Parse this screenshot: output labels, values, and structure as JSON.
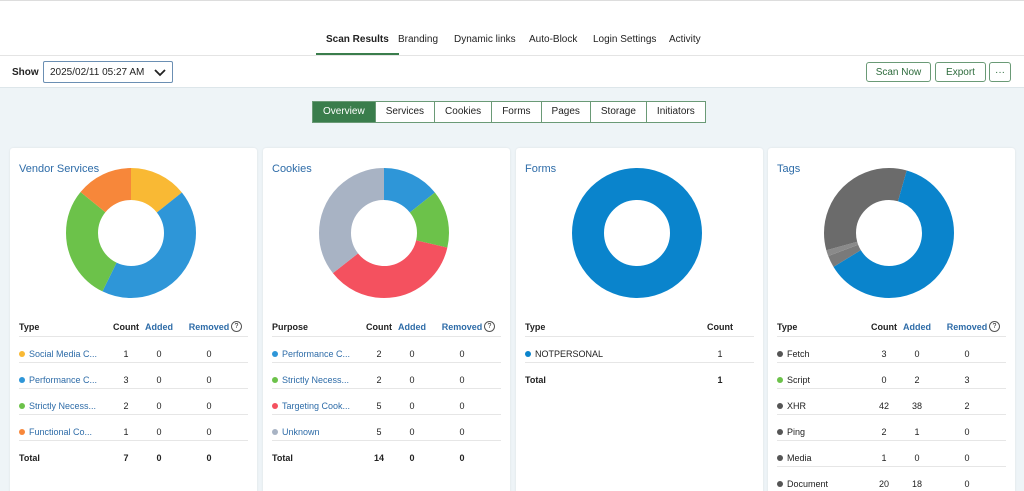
{
  "top_tabs": [
    "Scan Results",
    "Branding",
    "Dynamic links",
    "Auto-Block",
    "Login Settings",
    "Activity"
  ],
  "toolbar": {
    "show_label": "Show",
    "date": "2025/02/11 05:27 AM",
    "buttons": [
      "Scan Now",
      "Export"
    ]
  },
  "sub_tabs": [
    "Overview",
    "Services",
    "Cookies",
    "Forms",
    "Pages",
    "Storage",
    "Initiators"
  ],
  "cards": [
    {
      "title": "Vendor Services",
      "columns": [
        "Type",
        "Count",
        "Added",
        "Removed"
      ],
      "rows": [
        {
          "label": "Social Media C...",
          "color": "#f9b934",
          "count": 1,
          "added": 0,
          "removed": 0
        },
        {
          "label": "Performance C...",
          "color": "#2e96d8",
          "count": 3,
          "added": 0,
          "removed": 0
        },
        {
          "label": "Strictly Necess...",
          "color": "#6cc24a",
          "count": 2,
          "added": 0,
          "removed": 0
        },
        {
          "label": "Functional Co...",
          "color": "#f7873a",
          "count": 1,
          "added": 0,
          "removed": 0
        }
      ],
      "total": {
        "label": "Total",
        "count": 7,
        "added": 0,
        "removed": 0
      }
    },
    {
      "title": "Cookies",
      "columns": [
        "Purpose",
        "Count",
        "Added",
        "Removed"
      ],
      "rows": [
        {
          "label": "Performance C...",
          "color": "#2e96d8",
          "count": 2,
          "added": 0,
          "removed": 0
        },
        {
          "label": "Strictly Necess...",
          "color": "#6cc24a",
          "count": 2,
          "added": 0,
          "removed": 0
        },
        {
          "label": "Targeting Cook...",
          "color": "#f4515f",
          "count": 5,
          "added": 0,
          "removed": 0
        },
        {
          "label": "Unknown",
          "color": "#a8b3c4",
          "count": 5,
          "added": 0,
          "removed": 0
        }
      ],
      "total": {
        "label": "Total",
        "count": 14,
        "added": 0,
        "removed": 0
      }
    },
    {
      "title": "Forms",
      "columns": [
        "Type",
        "Count"
      ],
      "rows": [
        {
          "label": "NOTPERSONAL",
          "color": "#0a84cc",
          "count": 1
        }
      ],
      "total": {
        "label": "Total",
        "count": 1
      }
    },
    {
      "title": "Tags",
      "columns": [
        "Type",
        "Count",
        "Added",
        "Removed"
      ],
      "slice_colors": [
        "#6b6b6b",
        "#6cc24a",
        "#0a84cc",
        "#7a7a7a",
        "#8a8a8a",
        "#6b6b6b"
      ],
      "rows": [
        {
          "label": "Fetch",
          "color": "#555555",
          "count": 3,
          "added": 0,
          "removed": 0
        },
        {
          "label": "Script",
          "color": "#6cc24a",
          "count": 0,
          "added": 2,
          "removed": 3
        },
        {
          "label": "XHR",
          "color": "#555555",
          "count": 42,
          "added": 38,
          "removed": 2
        },
        {
          "label": "Ping",
          "color": "#555555",
          "count": 2,
          "added": 1,
          "removed": 0
        },
        {
          "label": "Media",
          "color": "#555555",
          "count": 1,
          "added": 0,
          "removed": 0
        },
        {
          "label": "Document",
          "color": "#555555",
          "count": 20,
          "added": 18,
          "removed": 0
        }
      ]
    }
  ]
}
